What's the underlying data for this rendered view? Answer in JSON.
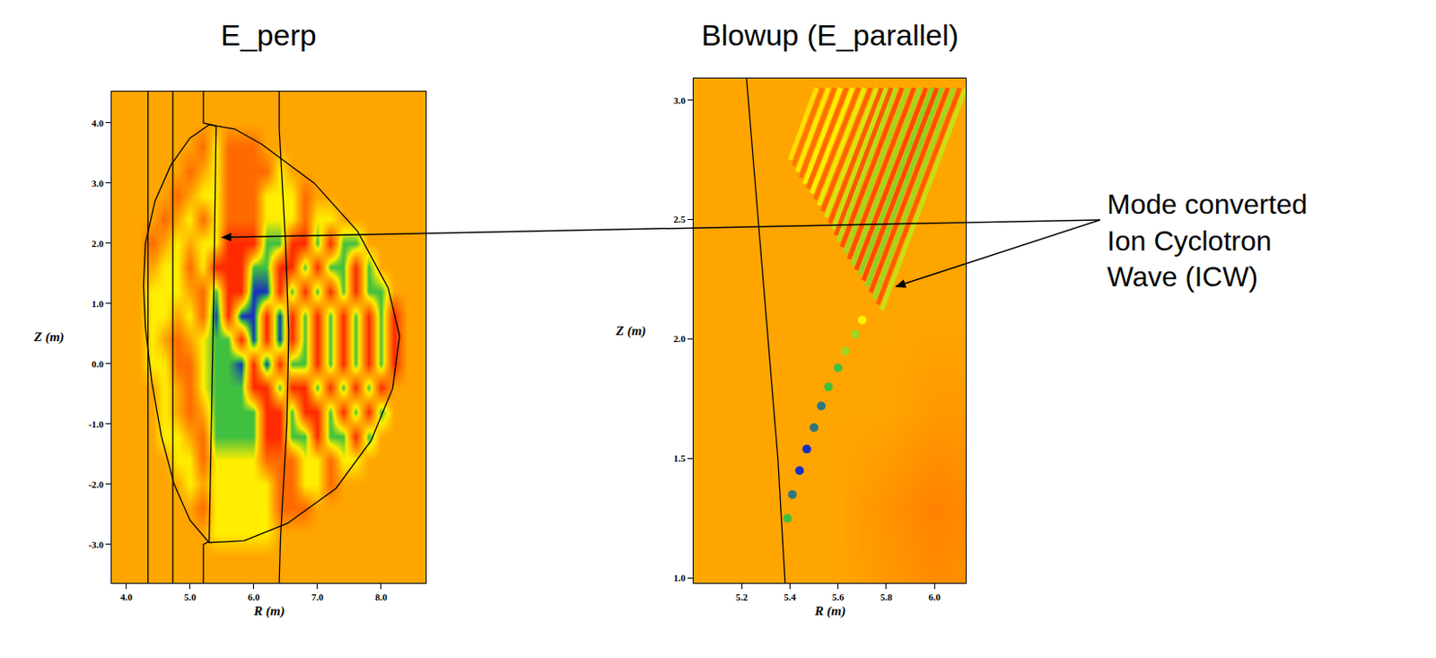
{
  "chart_data": [
    {
      "type": "heatmap",
      "title": "E_perp",
      "x_label": "R (m)",
      "y_label": "Z (m)",
      "grid": false,
      "xlim": [
        3.77,
        8.7
      ],
      "ylim": [
        -3.64,
        4.52
      ],
      "xticks": [
        {
          "value": 4,
          "label": "4.0"
        },
        {
          "value": 5,
          "label": "5.0"
        },
        {
          "value": 6,
          "label": "6.0"
        },
        {
          "value": 7,
          "label": "7.0"
        },
        {
          "value": 8,
          "label": "8.0"
        }
      ],
      "yticks": [
        {
          "value": -3,
          "label": "-3.0"
        },
        {
          "value": -2,
          "label": "-2.0"
        },
        {
          "value": -1,
          "label": "-1.0"
        },
        {
          "value": 0,
          "label": "0.0"
        },
        {
          "value": 1,
          "label": "1.0"
        },
        {
          "value": 2,
          "label": "2.0"
        },
        {
          "value": 3,
          "label": "3.0"
        },
        {
          "value": 4,
          "label": "4.0"
        }
      ],
      "zlim": [
        -3,
        3
      ],
      "colors": [
        "#b40000",
        "#ff2a00",
        "#ff6a00",
        "#ffa500",
        "#ffee00",
        "#40c040",
        "#1830c0"
      ],
      "x": [
        4.0,
        4.2,
        4.4,
        4.6,
        4.8,
        5.0,
        5.2,
        5.4,
        5.6,
        5.8,
        6.0,
        6.2,
        6.4,
        6.6,
        6.8,
        7.0,
        7.2,
        7.4,
        7.6,
        7.8,
        8.0,
        8.2,
        8.4,
        8.6
      ],
      "y": [
        -3.2,
        -2.8,
        -2.4,
        -2.0,
        -1.6,
        -1.2,
        -0.8,
        -0.4,
        0.0,
        0.4,
        0.8,
        1.2,
        1.6,
        2.0,
        2.4,
        2.8,
        3.2,
        3.6,
        4.0
      ],
      "cells": [
        [
          0,
          0,
          0,
          0,
          0,
          0,
          0,
          0,
          0,
          0,
          0,
          0,
          0,
          0,
          0,
          0,
          0,
          0,
          0,
          0,
          0,
          0,
          0,
          0
        ],
        [
          0,
          0,
          0,
          0,
          0,
          0,
          0,
          1,
          1,
          1,
          1,
          1,
          0,
          0,
          0,
          0,
          0,
          0,
          0,
          0,
          0,
          0,
          0,
          0
        ],
        [
          0,
          0,
          0,
          0,
          0,
          0,
          -1,
          1,
          1,
          1,
          1,
          1,
          -1,
          -1,
          -1,
          0,
          0,
          0,
          0,
          0,
          0,
          0,
          0,
          0
        ],
        [
          0,
          0,
          0,
          0,
          0,
          1,
          0,
          1,
          1,
          1,
          1,
          1,
          -1,
          -1,
          1,
          1,
          -1,
          0,
          0,
          0,
          0,
          0,
          0,
          0
        ],
        [
          0,
          0,
          0,
          0,
          1,
          1,
          -1,
          1,
          1,
          1,
          1,
          -1,
          -1,
          -1,
          1,
          1,
          -1,
          1,
          1,
          0,
          0,
          0,
          0,
          0
        ],
        [
          0,
          0,
          0,
          1,
          1,
          0,
          -1,
          2,
          2,
          2,
          2,
          -2,
          -2,
          2,
          2,
          -2,
          2,
          2,
          -2,
          2,
          0,
          0,
          0,
          0
        ],
        [
          0,
          0,
          0,
          1,
          0,
          -1,
          0,
          2,
          2,
          2,
          2,
          -2,
          -2,
          2,
          -2,
          -2,
          2,
          -2,
          2,
          -2,
          2,
          0,
          0,
          0
        ],
        [
          0,
          0,
          0,
          1,
          0,
          -1,
          1,
          2,
          2,
          2,
          -2,
          -2,
          2,
          -2,
          -2,
          2,
          -2,
          2,
          -2,
          2,
          -2,
          0,
          0,
          0
        ],
        [
          0,
          0,
          1,
          1,
          -1,
          -1,
          1,
          2,
          2,
          3,
          -2,
          3,
          -2,
          2,
          2,
          -2,
          2,
          -2,
          2,
          -2,
          2,
          -2,
          0,
          0
        ],
        [
          0,
          0,
          1,
          0,
          -1,
          0,
          1,
          2,
          2,
          -2,
          3,
          -2,
          3,
          -2,
          2,
          -2,
          2,
          -2,
          2,
          -2,
          2,
          -2,
          0,
          0
        ],
        [
          0,
          0,
          1,
          1,
          0,
          1,
          -1,
          3,
          -2,
          3,
          3,
          -2,
          3,
          -2,
          2,
          -2,
          2,
          -2,
          2,
          -2,
          2,
          -2,
          0,
          0
        ],
        [
          0,
          0,
          1,
          1,
          1,
          0,
          -1,
          2,
          -2,
          -2,
          3,
          3,
          -2,
          2,
          -2,
          2,
          -2,
          2,
          -2,
          2,
          2,
          0,
          0,
          0
        ],
        [
          0,
          0,
          0,
          1,
          1,
          -1,
          1,
          -2,
          -2,
          -2,
          2,
          2,
          -2,
          -2,
          2,
          -2,
          2,
          2,
          -2,
          2,
          0,
          0,
          0,
          0
        ],
        [
          0,
          0,
          -1,
          0,
          1,
          0,
          1,
          1,
          -2,
          -2,
          -2,
          2,
          2,
          -2,
          -2,
          2,
          -2,
          2,
          2,
          0,
          0,
          0,
          0,
          0
        ],
        [
          0,
          0,
          0,
          -1,
          0,
          1,
          -1,
          1,
          -1,
          -1,
          -1,
          1,
          1,
          1,
          -1,
          1,
          1,
          0,
          0,
          0,
          0,
          0,
          0,
          0
        ],
        [
          0,
          0,
          0,
          0,
          -1,
          0,
          1,
          1,
          -1,
          -1,
          -1,
          1,
          1,
          1,
          -1,
          0,
          0,
          0,
          0,
          0,
          0,
          0,
          0,
          0
        ],
        [
          0,
          0,
          0,
          0,
          0,
          -1,
          0,
          1,
          -1,
          -1,
          -1,
          -1,
          1,
          0,
          0,
          0,
          0,
          0,
          0,
          0,
          0,
          0,
          0,
          0
        ],
        [
          0,
          0,
          0,
          0,
          0,
          0,
          -1,
          1,
          -1,
          -1,
          -1,
          0,
          0,
          0,
          0,
          0,
          0,
          0,
          0,
          0,
          0,
          0,
          0,
          0
        ],
        [
          0,
          0,
          0,
          0,
          0,
          0,
          0,
          0,
          0,
          0,
          0,
          0,
          0,
          0,
          0,
          0,
          0,
          0,
          0,
          0,
          0,
          0,
          0,
          0
        ]
      ],
      "curves": [
        {
          "x": [
            5.3,
            5.7,
            6.12,
            6.95,
            7.63,
            8.11,
            8.29,
            8.18,
            7.84,
            7.29,
            6.53,
            5.85,
            5.3,
            5.0,
            4.75,
            4.55,
            4.4,
            4.3,
            4.27,
            4.3,
            4.45,
            4.7,
            5.0,
            5.3
          ],
          "y": [
            3.97,
            3.9,
            3.65,
            3.0,
            2.2,
            1.26,
            0.46,
            -0.41,
            -1.28,
            -2.07,
            -2.65,
            -2.94,
            -2.97,
            -2.6,
            -2.0,
            -1.2,
            -0.3,
            0.6,
            1.3,
            2.0,
            2.7,
            3.3,
            3.75,
            3.97
          ]
        },
        {
          "x": [
            4.34,
            4.34
          ],
          "y": [
            -3.64,
            4.52
          ]
        },
        {
          "x": [
            4.73,
            4.73
          ],
          "y": [
            -3.64,
            4.52
          ]
        },
        {
          "x": [
            5.21,
            5.21,
            5.41,
            5.37,
            5.3,
            5.21,
            5.21
          ],
          "y": [
            4.52,
            4.0,
            3.95,
            1.0,
            -2.95,
            -3.0,
            -3.64
          ]
        },
        {
          "x": [
            6.4,
            6.4,
            6.5,
            6.55,
            6.52,
            6.42,
            6.4
          ],
          "y": [
            4.52,
            3.9,
            2.0,
            0.5,
            -1.0,
            -2.9,
            -3.64
          ]
        }
      ],
      "pointer": [
        5.5,
        2.1
      ]
    },
    {
      "type": "heatmap",
      "title": "Blowup (E_parallel)",
      "x_label": "R (m)",
      "y_label": "Z (m)",
      "grid": false,
      "xlim": [
        5.0,
        6.13
      ],
      "ylim": [
        0.98,
        3.09
      ],
      "xticks": [
        5.2,
        5.4,
        5.6,
        5.8,
        {
          "value": 6,
          "label": "6.0"
        }
      ],
      "yticks": [
        {
          "value": 1,
          "label": "1.0"
        },
        1.5,
        {
          "value": 2,
          "label": "2.0"
        },
        2.5,
        {
          "value": 3,
          "label": "3.0"
        }
      ],
      "zlim": [
        -3,
        3
      ],
      "colors": [
        "#b40000",
        "#ff2a00",
        "#ff6a00",
        "#ffa500",
        "#ffee00",
        "#40c040",
        "#1830c0"
      ],
      "x": [
        5.0,
        5.2,
        5.4,
        5.6,
        5.8,
        6.0,
        6.2
      ],
      "y": [
        0.9,
        1.3,
        1.7,
        2.1,
        2.5,
        2.9,
        3.3
      ],
      "cells": [
        [
          0,
          0,
          0,
          0,
          -0.2,
          -0.4,
          -0.3
        ],
        [
          0,
          0,
          0,
          0,
          -0.3,
          -0.6,
          -0.4
        ],
        [
          0,
          0,
          0,
          0,
          0,
          -0.2,
          -0.2
        ],
        [
          0,
          0,
          0,
          0,
          0,
          0,
          0
        ],
        [
          0,
          0,
          0,
          0,
          0,
          0,
          0
        ],
        [
          0,
          0,
          0,
          0,
          0,
          0,
          0
        ],
        [
          0,
          0,
          0,
          0,
          0,
          0,
          0
        ]
      ],
      "stripes": [
        {
          "x": [
            5.78,
            6.13
          ],
          "y": [
            2.12,
            3.05
          ],
          "value": 1.3
        },
        {
          "x": [
            5.75,
            6.08
          ],
          "y": [
            2.17,
            3.05
          ],
          "value": 1.5
        },
        {
          "x": [
            5.72,
            6.03
          ],
          "y": [
            2.22,
            3.05
          ],
          "value": 1.6
        },
        {
          "x": [
            5.69,
            5.99
          ],
          "y": [
            2.27,
            3.05
          ],
          "value": 1.6
        },
        {
          "x": [
            5.66,
            5.94
          ],
          "y": [
            2.31,
            3.05
          ],
          "value": 1.5
        },
        {
          "x": [
            5.63,
            5.89
          ],
          "y": [
            2.36,
            3.05
          ],
          "value": 1.5
        },
        {
          "x": [
            5.6,
            5.84
          ],
          "y": [
            2.41,
            3.05
          ],
          "value": 1.4
        },
        {
          "x": [
            5.58,
            5.8
          ],
          "y": [
            2.46,
            3.05
          ],
          "value": 1.3
        },
        {
          "x": [
            5.55,
            5.76
          ],
          "y": [
            2.51,
            3.05
          ],
          "value": 1.2
        },
        {
          "x": [
            5.52,
            5.71
          ],
          "y": [
            2.56,
            3.05
          ],
          "value": 1.1
        },
        {
          "x": [
            5.49,
            5.66
          ],
          "y": [
            2.61,
            3.05
          ],
          "value": 1.0
        },
        {
          "x": [
            5.46,
            5.61
          ],
          "y": [
            2.65,
            3.05
          ],
          "value": 1.0
        },
        {
          "x": [
            5.43,
            5.56
          ],
          "y": [
            2.7,
            3.05
          ],
          "value": 0.9
        },
        {
          "x": [
            5.4,
            5.51
          ],
          "y": [
            2.75,
            3.05
          ],
          "value": 0.8
        },
        {
          "x": [
            5.765,
            6.105
          ],
          "y": [
            2.145,
            3.05
          ],
          "value": -1.2
        },
        {
          "x": [
            5.735,
            6.055
          ],
          "y": [
            2.195,
            3.05
          ],
          "value": -1.4
        },
        {
          "x": [
            5.705,
            6.01
          ],
          "y": [
            2.245,
            3.05
          ],
          "value": -1.5
        },
        {
          "x": [
            5.675,
            5.965
          ],
          "y": [
            2.29,
            3.05
          ],
          "value": -1.5
        },
        {
          "x": [
            5.645,
            5.915
          ],
          "y": [
            2.335,
            3.05
          ],
          "value": -1.4
        },
        {
          "x": [
            5.615,
            5.865
          ],
          "y": [
            2.385,
            3.05
          ],
          "value": -1.4
        },
        {
          "x": [
            5.59,
            5.82
          ],
          "y": [
            2.435,
            3.05
          ],
          "value": -1.3
        },
        {
          "x": [
            5.565,
            5.78
          ],
          "y": [
            2.485,
            3.05
          ],
          "value": -1.2
        },
        {
          "x": [
            5.535,
            5.735
          ],
          "y": [
            2.535,
            3.05
          ],
          "value": -1.1
        },
        {
          "x": [
            5.505,
            5.685
          ],
          "y": [
            2.585,
            3.05
          ],
          "value": -1.0
        },
        {
          "x": [
            5.475,
            5.635
          ],
          "y": [
            2.63,
            3.05
          ],
          "value": -1.0
        },
        {
          "x": [
            5.445,
            5.585
          ],
          "y": [
            2.675,
            3.05
          ],
          "value": -0.9
        },
        {
          "x": [
            5.415,
            5.535
          ],
          "y": [
            2.725,
            3.05
          ],
          "value": -0.8
        }
      ],
      "beam": {
        "x": [
          5.39,
          5.41,
          5.44,
          5.47,
          5.5,
          5.53,
          5.56,
          5.6,
          5.63,
          5.67,
          5.7
        ],
        "y": [
          1.25,
          1.35,
          1.45,
          1.54,
          1.63,
          1.72,
          1.8,
          1.88,
          1.95,
          2.02,
          2.08
        ],
        "values": [
          2,
          2.5,
          3,
          3,
          2.5,
          2.5,
          2,
          2,
          1.5,
          1.5,
          1
        ]
      },
      "curves": [
        {
          "x": [
            5.22,
            5.26,
            5.31,
            5.35,
            5.38
          ],
          "y": [
            3.09,
            2.6,
            2.0,
            1.5,
            0.98
          ]
        }
      ],
      "pointer": [
        5.84,
        2.22
      ]
    }
  ],
  "annotation": [
    "Mode converted",
    "Ion Cyclotron",
    "Wave (ICW)"
  ]
}
